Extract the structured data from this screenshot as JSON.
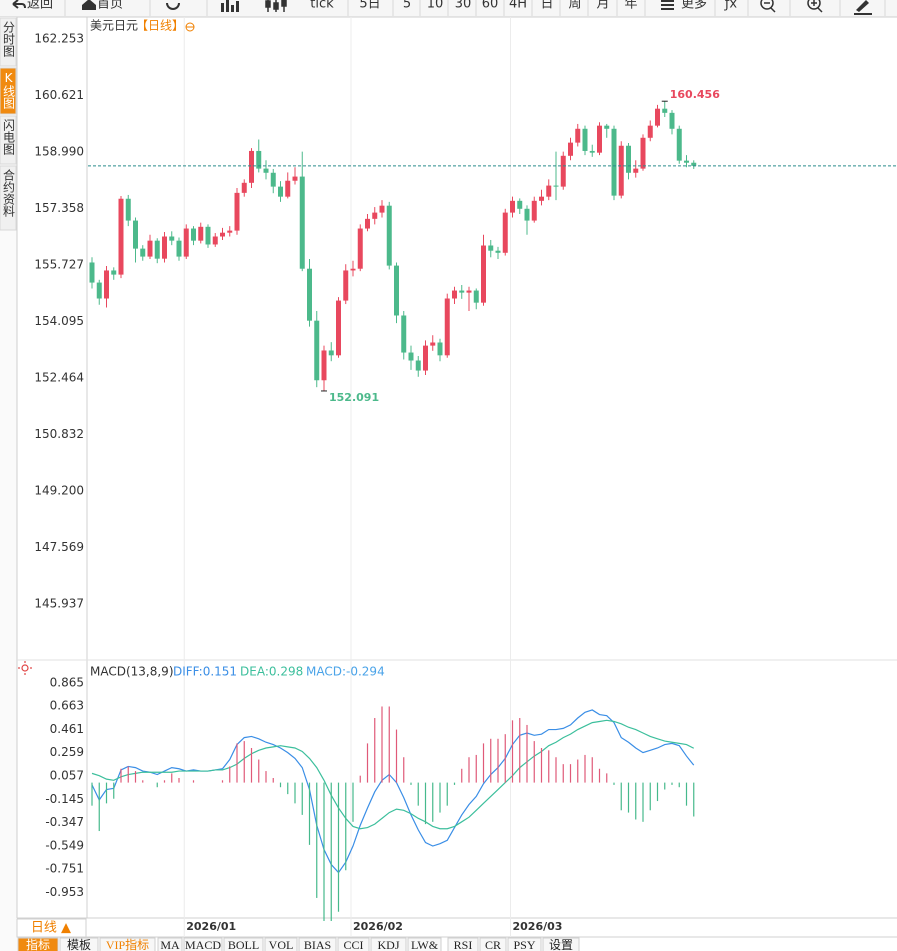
{
  "toolbar": [
    "返回",
    "首页",
    "tick",
    "5日",
    "5",
    "10",
    "30",
    "60",
    "4H",
    "日",
    "周",
    "月",
    "年",
    "更多",
    "ƒx"
  ],
  "sidebar": [
    "分时图",
    "K线图",
    "闪电图",
    "合约资料"
  ],
  "period": "日线 ▲",
  "indicator_tabs": [
    "指标",
    "模板",
    "VIP指标",
    "MA",
    "MACD",
    "BOLL",
    "VOL",
    "BIAS",
    "CCI",
    "KDJ",
    "LW&",
    "RSI",
    "CR",
    "PSY",
    "设置"
  ],
  "chart_data": [
    {
      "type": "candlestick",
      "title": "美元日元",
      "subtitle": "【日线】",
      "categories": [
        null,
        null,
        null,
        null,
        null,
        null,
        null,
        null,
        null,
        null,
        null,
        null,
        null,
        "2026/01",
        null,
        null,
        null,
        null,
        null,
        null,
        null,
        null,
        null,
        null,
        null,
        null,
        null,
        null,
        null,
        null,
        null,
        null,
        null,
        null,
        null,
        null,
        "2026/02",
        null,
        null,
        null,
        null,
        null,
        null,
        null,
        null,
        null,
        null,
        null,
        null,
        null,
        null,
        null,
        null,
        null,
        null,
        null,
        null,
        null,
        "2026/03",
        null,
        null,
        null,
        null,
        null,
        null,
        null,
        null,
        null,
        null,
        null,
        null,
        null,
        null,
        null,
        null,
        null,
        null,
        null,
        null,
        null,
        null,
        null,
        null,
        null
      ],
      "open": [
        155.8,
        155.22,
        154.76,
        155.57,
        155.45,
        157.64,
        157.01,
        156.2,
        155.97,
        156.43,
        155.91,
        156.55,
        156.43,
        155.97,
        156.78,
        156.43,
        156.83,
        156.32,
        156.55,
        156.66,
        156.72,
        157.81,
        158.1,
        159.02,
        158.51,
        158.39,
        157.99,
        157.7,
        158.16,
        158.28,
        155.62,
        154.12,
        152.4,
        153.26,
        153.12,
        154.7,
        155.57,
        155.62,
        156.78,
        157.06,
        157.24,
        157.44,
        155.71,
        154.27,
        153.2,
        152.97,
        152.68,
        153.4,
        153.49,
        153.12,
        154.76,
        154.99,
        154.93,
        154.99,
        154.64,
        156.29,
        156.14,
        156.08,
        157.24,
        157.58,
        157.35,
        157.01,
        157.58,
        157.7,
        158.02,
        157.99,
        158.88,
        159.26,
        159.66,
        159.02,
        158.97,
        159.75,
        159.66,
        157.73,
        159.17,
        158.39,
        158.51,
        159.4,
        159.75,
        160.24,
        160.12,
        159.66,
        158.74,
        158.68
      ],
      "high": [
        155.95,
        155.3,
        155.7,
        155.66,
        157.72,
        157.75,
        157.1,
        156.3,
        156.6,
        156.5,
        156.68,
        156.7,
        156.52,
        156.9,
        156.85,
        156.95,
        156.9,
        156.65,
        156.8,
        156.85,
        157.95,
        158.2,
        159.1,
        159.35,
        158.75,
        158.5,
        158.15,
        158.4,
        158.55,
        159.0,
        155.9,
        154.4,
        153.4,
        153.5,
        154.8,
        155.75,
        155.85,
        156.9,
        157.2,
        157.4,
        157.6,
        157.55,
        155.8,
        154.4,
        153.4,
        153.1,
        153.55,
        153.7,
        153.6,
        154.9,
        155.1,
        155.15,
        155.1,
        155.05,
        156.6,
        156.45,
        156.25,
        157.35,
        157.7,
        157.65,
        157.45,
        157.7,
        157.9,
        158.2,
        159.0,
        159.0,
        159.4,
        159.8,
        159.75,
        159.2,
        159.85,
        159.8,
        159.75,
        159.3,
        159.25,
        158.75,
        159.5,
        159.9,
        160.35,
        160.456,
        160.2,
        159.75,
        158.9,
        158.75
      ],
      "low": [
        155.05,
        154.58,
        154.5,
        155.3,
        155.35,
        156.85,
        155.8,
        155.85,
        155.9,
        155.78,
        155.8,
        156.3,
        155.85,
        155.9,
        156.3,
        156.35,
        156.22,
        156.25,
        156.45,
        156.55,
        156.6,
        157.7,
        157.95,
        158.4,
        158.2,
        157.8,
        157.55,
        157.65,
        158.05,
        155.55,
        153.95,
        152.2,
        152.091,
        152.95,
        153.05,
        154.6,
        155.4,
        155.55,
        156.7,
        156.9,
        157.1,
        155.6,
        154.05,
        153.0,
        152.7,
        152.5,
        152.55,
        153.25,
        152.95,
        153.05,
        154.6,
        154.75,
        154.4,
        154.45,
        154.55,
        155.95,
        155.9,
        156.0,
        157.1,
        157.2,
        156.6,
        156.95,
        157.45,
        157.6,
        157.6,
        157.9,
        158.75,
        159.15,
        158.9,
        158.85,
        158.9,
        159.4,
        157.6,
        157.65,
        158.2,
        158.25,
        158.45,
        159.3,
        159.7,
        160.0,
        159.5,
        158.65,
        158.55,
        158.5
      ],
      "close": [
        155.22,
        154.76,
        155.57,
        155.45,
        157.64,
        157.01,
        156.2,
        155.97,
        156.43,
        155.91,
        156.55,
        156.43,
        155.97,
        156.78,
        156.43,
        156.83,
        156.32,
        156.55,
        156.66,
        156.72,
        157.81,
        158.1,
        159.02,
        158.51,
        158.39,
        157.99,
        157.7,
        158.16,
        158.28,
        155.62,
        154.12,
        152.4,
        153.26,
        153.12,
        154.7,
        155.57,
        155.62,
        156.78,
        157.06,
        157.24,
        157.44,
        155.71,
        154.27,
        153.2,
        152.97,
        152.68,
        153.4,
        153.49,
        153.12,
        154.76,
        154.99,
        154.93,
        154.99,
        154.64,
        156.29,
        156.14,
        156.08,
        157.24,
        157.58,
        157.35,
        157.01,
        157.58,
        157.7,
        158.02,
        157.99,
        158.88,
        159.26,
        159.66,
        159.02,
        158.97,
        159.75,
        159.66,
        157.73,
        159.17,
        158.39,
        158.51,
        159.4,
        159.75,
        160.24,
        160.12,
        159.66,
        158.74,
        158.68,
        158.59
      ],
      "up_color": "#e8485e",
      "down_color": "#4cb98b",
      "last_price_color": "#2a8c8c",
      "ylim": [
        144.324,
        162.887
      ],
      "yticks": [
        162.253,
        160.621,
        {
          "value": 158.99,
          "label": "158.990"
        },
        157.358,
        155.727,
        154.095,
        152.464,
        150.832,
        {
          "value": 149.2,
          "label": "149.200"
        },
        147.569,
        145.937
      ],
      "grid": false
    },
    {
      "type": "macd",
      "title": "MACD(13,8,9)",
      "series": [
        {
          "name": "DIFF:0.151",
          "color": "#3a8ee6",
          "values": [
            -0.02,
            -0.15,
            -0.06,
            -0.05,
            0.11,
            0.14,
            0.13,
            0.1,
            0.09,
            0.07,
            0.1,
            0.13,
            0.12,
            0.1,
            0.11,
            0.1,
            0.1,
            0.11,
            0.12,
            0.2,
            0.33,
            0.39,
            0.4,
            0.38,
            0.35,
            0.33,
            0.3,
            0.26,
            0.21,
            0.13,
            -0.06,
            -0.37,
            -0.58,
            -0.71,
            -0.78,
            -0.69,
            -0.55,
            -0.37,
            -0.22,
            -0.08,
            0.02,
            0.07,
            0.0,
            -0.13,
            -0.28,
            -0.41,
            -0.52,
            -0.55,
            -0.53,
            -0.5,
            -0.39,
            -0.28,
            -0.19,
            -0.12,
            -0.01,
            0.07,
            0.13,
            0.21,
            0.33,
            0.41,
            0.43,
            0.41,
            0.42,
            0.46,
            0.46,
            0.47,
            0.5,
            0.56,
            0.61,
            0.63,
            0.59,
            0.58,
            0.52,
            0.39,
            0.35,
            0.3,
            0.26,
            0.28,
            0.3,
            0.33,
            0.34,
            0.32,
            0.23,
            0.151
          ]
        },
        {
          "name": "DEA:0.298",
          "color": "#3cbf9c",
          "values": [
            0.08,
            0.06,
            0.03,
            0.02,
            0.05,
            0.07,
            0.08,
            0.09,
            0.09,
            0.09,
            0.09,
            0.09,
            0.1,
            0.1,
            0.1,
            0.1,
            0.1,
            0.11,
            0.11,
            0.13,
            0.16,
            0.21,
            0.25,
            0.28,
            0.3,
            0.31,
            0.32,
            0.31,
            0.3,
            0.27,
            0.21,
            0.13,
            0.02,
            -0.11,
            -0.22,
            -0.31,
            -0.38,
            -0.4,
            -0.39,
            -0.36,
            -0.31,
            -0.26,
            -0.23,
            -0.24,
            -0.27,
            -0.31,
            -0.34,
            -0.38,
            -0.4,
            -0.4,
            -0.38,
            -0.34,
            -0.3,
            -0.24,
            -0.18,
            -0.12,
            -0.06,
            0.0,
            0.06,
            0.13,
            0.18,
            0.23,
            0.27,
            0.32,
            0.35,
            0.39,
            0.42,
            0.46,
            0.49,
            0.52,
            0.53,
            0.54,
            0.53,
            0.51,
            0.48,
            0.46,
            0.43,
            0.4,
            0.38,
            0.36,
            0.35,
            0.34,
            0.33,
            0.298
          ]
        },
        {
          "name": "MACD:-0.294",
          "color": "#4aa3e8",
          "up_color": "#e05a78",
          "down_color": "#46b98c",
          "values": [
            -0.2,
            -0.42,
            -0.18,
            -0.14,
            0.12,
            0.14,
            0.1,
            0.02,
            0.0,
            -0.04,
            0.02,
            0.08,
            0.04,
            0.0,
            0.02,
            0.0,
            0.0,
            0.0,
            0.02,
            0.14,
            0.34,
            0.36,
            0.3,
            0.2,
            0.1,
            0.04,
            -0.04,
            -0.1,
            -0.18,
            -0.28,
            -0.54,
            -1.0,
            -1.2,
            -1.2,
            -1.12,
            -0.76,
            -0.34,
            0.06,
            0.34,
            0.56,
            0.66,
            0.66,
            0.46,
            0.22,
            -0.02,
            -0.2,
            -0.36,
            -0.34,
            -0.26,
            -0.2,
            -0.02,
            0.12,
            0.22,
            0.24,
            0.34,
            0.38,
            0.38,
            0.42,
            0.54,
            0.56,
            0.5,
            0.36,
            0.3,
            0.28,
            0.22,
            0.16,
            0.16,
            0.2,
            0.24,
            0.22,
            0.12,
            0.08,
            -0.02,
            -0.24,
            -0.26,
            -0.32,
            -0.34,
            -0.24,
            -0.16,
            -0.06,
            -0.02,
            -0.04,
            -0.2,
            -0.294
          ]
        }
      ],
      "ylim": [
        -1.174,
        1.037
      ],
      "yticks": [
        0.865,
        0.663,
        0.461,
        0.259,
        0.057,
        -0.145,
        -0.347,
        -0.549,
        -0.751,
        -0.953
      ]
    }
  ]
}
